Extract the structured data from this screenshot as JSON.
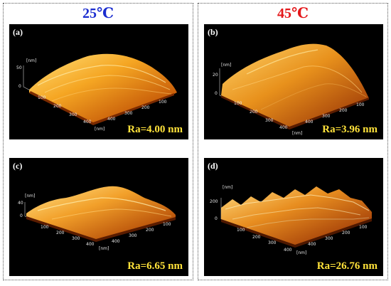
{
  "columns": [
    {
      "header": "25℃",
      "color": "#1a2ccf"
    },
    {
      "header": "45℃",
      "color": "#e4171a"
    }
  ],
  "panels": [
    {
      "label": "(a)",
      "ra": "Ra=4.00 nm",
      "unit": "[nm]",
      "z_ticks": [
        "50",
        "0"
      ],
      "x_ticks": [
        "100",
        "200",
        "300",
        "400"
      ],
      "y_ticks": [
        "100",
        "200",
        "300",
        "400"
      ]
    },
    {
      "label": "(b)",
      "ra": "Ra=3.96 nm",
      "unit": "[nm]",
      "z_ticks": [
        "20",
        "0"
      ],
      "x_ticks": [
        "100",
        "200",
        "300",
        "400"
      ],
      "y_ticks": [
        "100",
        "200",
        "300",
        "400"
      ]
    },
    {
      "label": "(c)",
      "ra": "Ra=6.65 nm",
      "unit": "[nm]",
      "z_ticks": [
        "40",
        "0"
      ],
      "x_ticks": [
        "100",
        "200",
        "300",
        "400"
      ],
      "y_ticks": [
        "100",
        "200",
        "300",
        "400"
      ]
    },
    {
      "label": "(d)",
      "ra": "Ra=26.76 nm",
      "unit": "[nm]",
      "z_ticks": [
        "200",
        "0"
      ],
      "x_ticks": [
        "100",
        "200",
        "300",
        "400"
      ],
      "y_ticks": [
        "100",
        "200",
        "300",
        "400"
      ]
    }
  ]
}
